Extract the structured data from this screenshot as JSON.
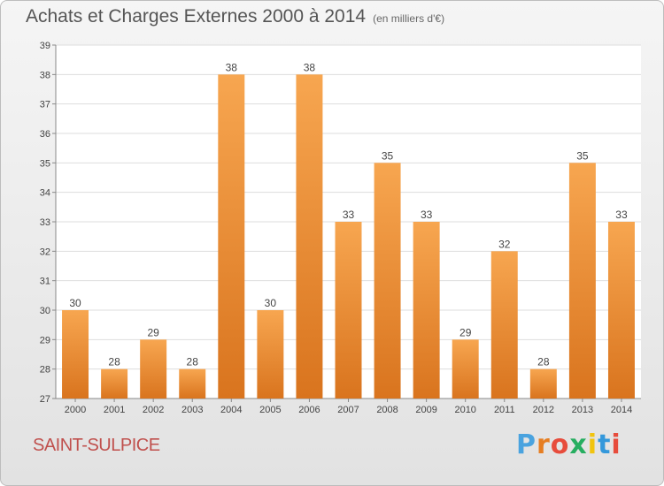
{
  "title": "Achats et Charges Externes 2000 à 2014",
  "unit": "(en milliers d'€)",
  "location": "SAINT-SULPICE",
  "brand": {
    "letters": [
      "P",
      "r",
      "o",
      "x",
      "i",
      "t",
      "i"
    ],
    "colors": [
      "#4aa3df",
      "#e67e22",
      "#e74c3c",
      "#27ae60",
      "#f1c40f",
      "#3498db",
      "#e74c3c"
    ]
  },
  "chart_data": {
    "type": "bar",
    "categories": [
      "2000",
      "2001",
      "2002",
      "2003",
      "2004",
      "2005",
      "2006",
      "2007",
      "2008",
      "2009",
      "2010",
      "2011",
      "2012",
      "2013",
      "2014"
    ],
    "values": [
      30,
      28,
      29,
      28,
      38,
      30,
      38,
      33,
      35,
      33,
      29,
      32,
      28,
      35,
      33
    ],
    "ylim": [
      27,
      39
    ],
    "yticks": [
      27,
      28,
      29,
      30,
      31,
      32,
      33,
      34,
      35,
      36,
      37,
      38,
      39
    ],
    "grid": true,
    "bar_color_top": "#f7a650",
    "bar_color_bottom": "#d9741e"
  }
}
